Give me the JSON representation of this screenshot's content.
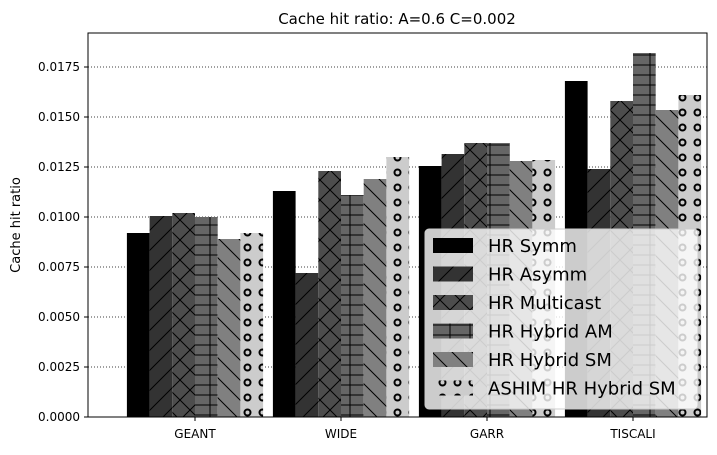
{
  "chart_data": {
    "type": "bar",
    "title": "Cache hit ratio: A=0.6 C=0.002",
    "xlabel": "",
    "ylabel": "Cache hit ratio",
    "categories": [
      "GEANT",
      "WIDE",
      "GARR",
      "TISCALI"
    ],
    "ylim": [
      0,
      0.0192
    ],
    "yticks": [
      "0.0000",
      "0.0025",
      "0.0050",
      "0.0075",
      "0.0100",
      "0.0125",
      "0.0150",
      "0.0175"
    ],
    "grid": "y, dotted",
    "legend_position": "lower-right",
    "series": [
      {
        "name": "HR Symm",
        "color": "#000000",
        "pattern": "solid",
        "values": [
          0.0092,
          0.0113,
          0.01255,
          0.0168
        ]
      },
      {
        "name": "HR Asymm",
        "color": "#333333",
        "pattern": "diagonal",
        "values": [
          0.01005,
          0.0072,
          0.01315,
          0.0124
        ]
      },
      {
        "name": "HR Multicast",
        "color": "#4d4d4d",
        "pattern": "cross-diagonal",
        "values": [
          0.0102,
          0.0123,
          0.0137,
          0.0158
        ]
      },
      {
        "name": "HR Hybrid AM",
        "color": "#666666",
        "pattern": "grid",
        "values": [
          0.01,
          0.0111,
          0.0137,
          0.0182
        ]
      },
      {
        "name": "HR Hybrid SM",
        "color": "#808080",
        "pattern": "back-diagonal",
        "values": [
          0.0089,
          0.0119,
          0.0128,
          0.01535
        ]
      },
      {
        "name": "ASHIM HR Hybrid SM",
        "color": "#cccccc",
        "pattern": "circles",
        "values": [
          0.0092,
          0.013,
          0.01285,
          0.0161
        ]
      }
    ]
  }
}
